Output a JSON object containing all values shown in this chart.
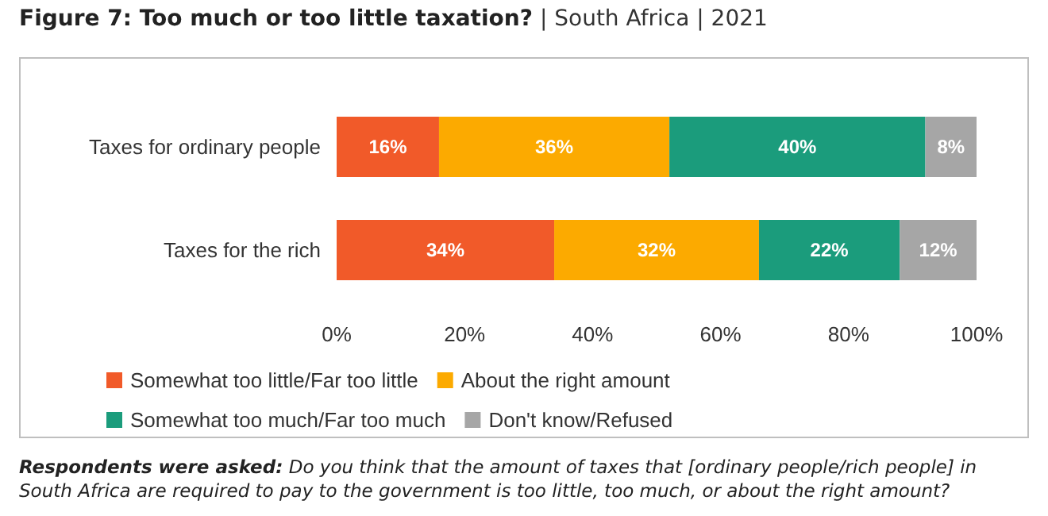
{
  "chart_data": {
    "type": "bar",
    "orientation": "horizontal",
    "stacked": true,
    "title": "Figure 7: Too much or too little taxation?",
    "subtitle": "| South Africa | 2021",
    "categories": [
      "Taxes for ordinary people",
      "Taxes for the rich"
    ],
    "series": [
      {
        "name": "Somewhat too little/Far too little",
        "color": "#f15a29",
        "values": [
          16,
          34
        ],
        "value_labels": [
          "16%",
          "34%"
        ]
      },
      {
        "name": "About the right amount",
        "color": "#fcaa00",
        "values": [
          36,
          32
        ],
        "value_labels": [
          "36%",
          "32%"
        ]
      },
      {
        "name": "Somewhat too much/Far too much",
        "color": "#1b9c7c",
        "values": [
          40,
          22
        ],
        "value_labels": [
          "40%",
          "22%"
        ]
      },
      {
        "name": "Don't know/Refused",
        "color": "#a6a6a6",
        "values": [
          8,
          12
        ],
        "value_labels": [
          "8%",
          "12%"
        ]
      }
    ],
    "xlim": [
      0,
      100
    ],
    "xticks": [
      {
        "value": 0,
        "label": "0%"
      },
      {
        "value": 20,
        "label": "20%"
      },
      {
        "value": 40,
        "label": "40%"
      },
      {
        "value": 60,
        "label": "60%"
      },
      {
        "value": 80,
        "label": "80%"
      },
      {
        "value": 100,
        "label": "100%"
      }
    ],
    "grid": false,
    "legend": "bottom",
    "annotations": [
      "Respondents were asked: Do you think that the amount of taxes that [ordinary people/rich people] in South Africa are required to pay to the government is too little, too much, or about the right amount?"
    ]
  }
}
